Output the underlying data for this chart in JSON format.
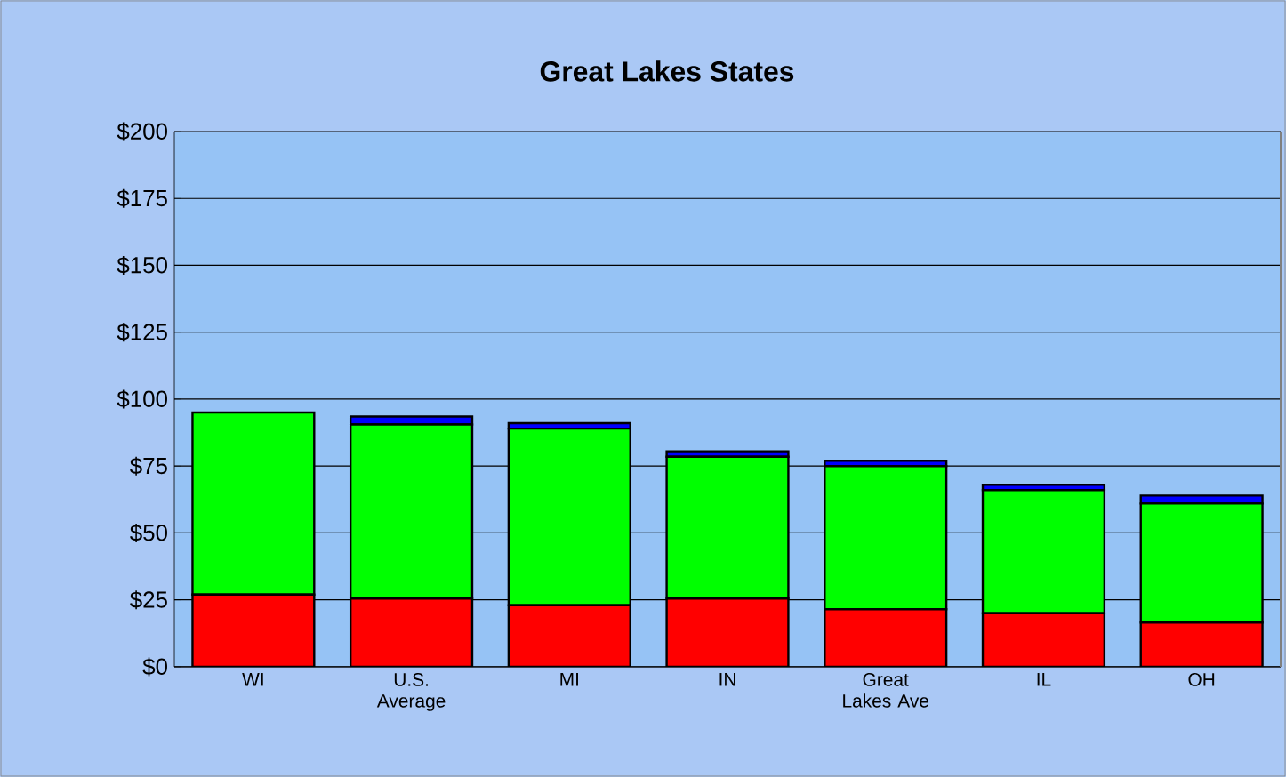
{
  "chart_data": {
    "type": "bar",
    "title": "Great Lakes States",
    "stacked": true,
    "categories": [
      "WI",
      "U.S. Average",
      "MI",
      "IN",
      "Great Lakes Ave",
      "IL",
      "OH"
    ],
    "series": [
      {
        "color": "#ff0000",
        "values": [
          27,
          25.5,
          23,
          25.5,
          21.5,
          20,
          16.5
        ]
      },
      {
        "color": "#00ff00",
        "values": [
          68,
          65,
          66,
          53,
          53.5,
          46,
          44.5
        ]
      },
      {
        "color": "#0000ff",
        "values": [
          0,
          3,
          2,
          2,
          2,
          2,
          3
        ]
      }
    ],
    "ylim": [
      0,
      200
    ],
    "yticks": [
      {
        "value": 0,
        "label": "$0"
      },
      {
        "value": 25,
        "label": "$25"
      },
      {
        "value": 50,
        "label": "$50"
      },
      {
        "value": 75,
        "label": "$75"
      },
      {
        "value": 100,
        "label": "$100"
      },
      {
        "value": 125,
        "label": "$125"
      },
      {
        "value": 150,
        "label": "$150"
      },
      {
        "value": 175,
        "label": "$175"
      },
      {
        "value": 200,
        "label": "$200"
      }
    ],
    "grid": "y"
  }
}
